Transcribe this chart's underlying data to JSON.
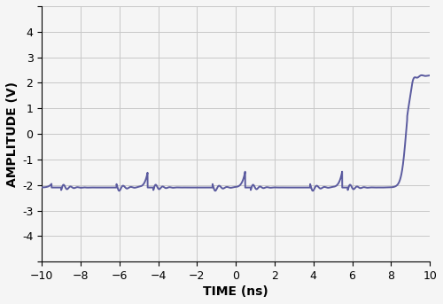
{
  "xlabel": "TIME (ns)",
  "ylabel": "AMPLITUDE (V)",
  "xlim": [
    -10,
    10
  ],
  "ylim": [
    -5,
    5
  ],
  "xticks": [
    -10,
    -8,
    -6,
    -4,
    -2,
    0,
    2,
    4,
    6,
    8,
    10
  ],
  "yticks": [
    -4,
    -3,
    -2,
    -1,
    0,
    1,
    2,
    3,
    4
  ],
  "line_color": "#5b5b9f",
  "line_width": 1.4,
  "background_color": "#f5f5f5",
  "grid_color": "#c8c8c8",
  "high_val": 2.28,
  "low_val": -2.1,
  "transitions": [
    [
      -9.05,
      -1
    ],
    [
      -6.2,
      1
    ],
    [
      -4.3,
      -1
    ],
    [
      -1.25,
      1
    ],
    [
      0.72,
      -1
    ],
    [
      3.78,
      1
    ],
    [
      5.72,
      -1
    ],
    [
      8.78,
      1
    ]
  ],
  "rise_time": 0.55,
  "fall_time": 0.6,
  "overshoot_high": 0.22,
  "overshoot_low": 0.18,
  "ring_freq_high": 2.5,
  "ring_freq_low": 2.8,
  "ring_decay": 0.35
}
